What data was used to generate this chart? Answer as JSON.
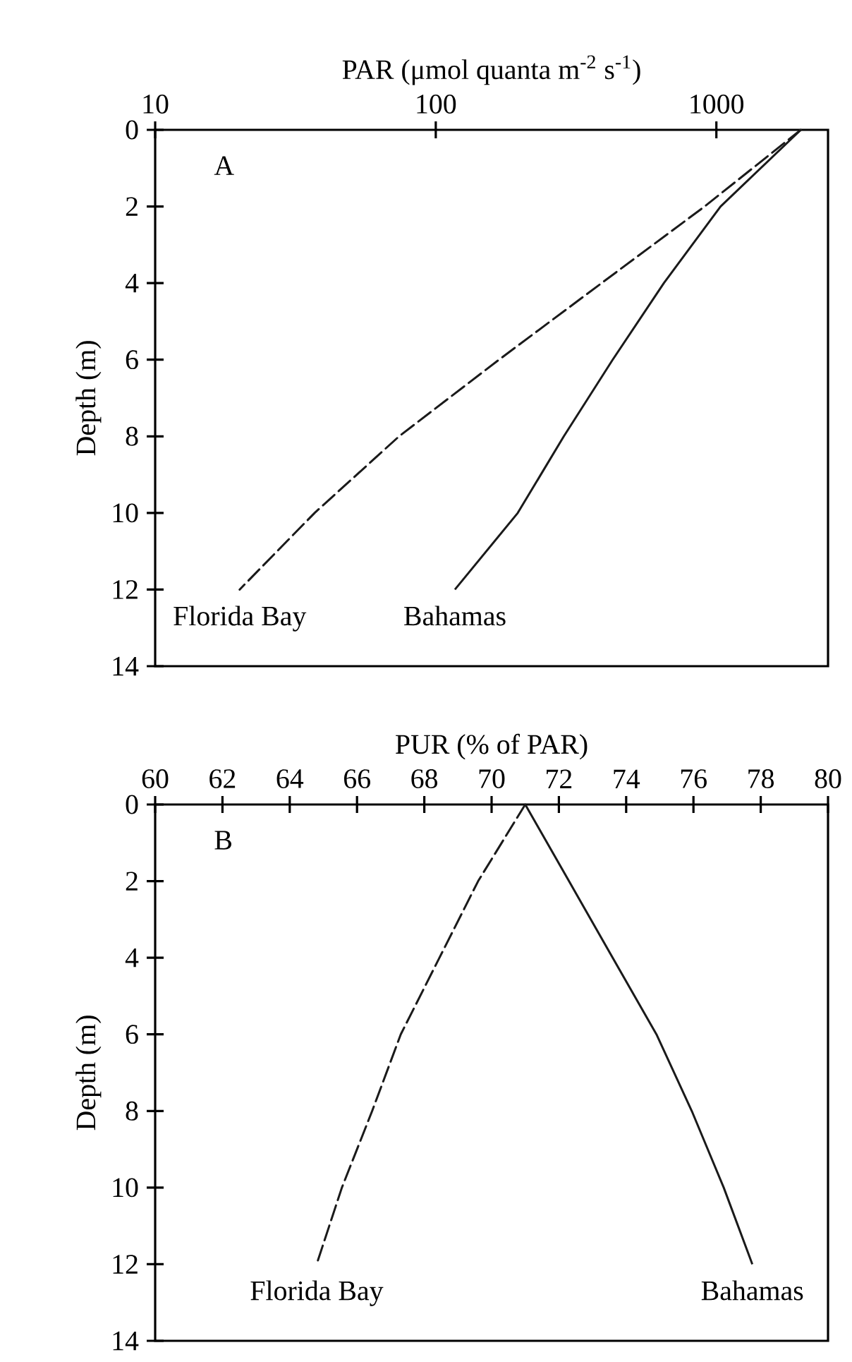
{
  "chart_data": [
    {
      "type": "line",
      "xlabel": "PAR (μmol quanta m$^{-2}$ s$^{-1}$)",
      "ylabel": "Depth (m)",
      "log": "x",
      "xlim": [
        10,
        2500
      ],
      "xticks": [
        10,
        100,
        1000
      ],
      "ylim": [
        14,
        0
      ],
      "yticks": [
        0,
        2,
        4,
        6,
        8,
        10,
        12,
        14
      ],
      "marker": "none",
      "annotations": [
        "A"
      ],
      "series": [
        {
          "name": "Florida Bay",
          "color": "#1a1a1a",
          "line_style": "dashed",
          "x": [
            2000,
            908,
            390,
            168,
            74,
            37,
            20
          ],
          "values": [
            0,
            2,
            4,
            6,
            8,
            10,
            12
          ]
        },
        {
          "name": "Bahamas",
          "color": "#1a1a1a",
          "line_style": "solid",
          "x": [
            2000,
            1035,
            650,
            427,
            286,
            196,
            117
          ],
          "values": [
            0,
            2,
            4,
            6,
            8,
            10,
            12
          ]
        }
      ]
    },
    {
      "type": "line",
      "xlabel": "PUR (% of PAR)",
      "ylabel": "Depth (m)",
      "xlim": [
        60,
        80
      ],
      "xticks": [
        60,
        62,
        64,
        66,
        68,
        70,
        72,
        74,
        76,
        78,
        80
      ],
      "ylim": [
        14,
        0
      ],
      "yticks": [
        0,
        2,
        4,
        6,
        8,
        10,
        12,
        14
      ],
      "marker": "none",
      "annotations": [
        "B"
      ],
      "series": [
        {
          "name": "Florida Bay",
          "color": "#1a1a1a",
          "line_style": "dashed",
          "x": [
            71,
            69.6,
            68.45,
            67.3,
            66.45,
            65.55,
            64.8
          ],
          "values": [
            0,
            2,
            4,
            6,
            8,
            10,
            12
          ]
        },
        {
          "name": "Bahamas",
          "color": "#1a1a1a",
          "line_style": "solid",
          "x": [
            71,
            72.3,
            73.6,
            74.9,
            75.95,
            76.9,
            77.75
          ],
          "values": [
            0,
            2,
            4,
            6,
            8,
            10,
            12
          ]
        }
      ]
    }
  ]
}
